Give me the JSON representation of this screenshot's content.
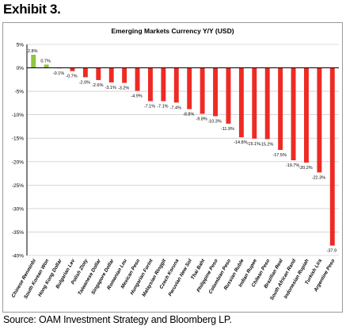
{
  "header": {
    "exhibit_label": "Exhibit 3."
  },
  "footer": {
    "source": "Source: OAM Investment Strategy and Bloomberg LP."
  },
  "colors": {
    "positive": "#8dc63f",
    "negative": "#ee2a24",
    "axis": "#000000",
    "grid": "#bdbdbd"
  },
  "chart_data": {
    "type": "bar",
    "title": "Emerging Markets Currency Y/Y (USD)",
    "xlabel": "",
    "ylabel": "",
    "ylim": [
      -40,
      5
    ],
    "yticks": [
      5,
      0,
      -5,
      -10,
      -15,
      -20,
      -25,
      -30,
      -35,
      -40
    ],
    "ytick_labels": [
      "5%",
      "0%",
      "-5%",
      "-10%",
      "-15%",
      "-20%",
      "-25%",
      "-30%",
      "-35%",
      "-40%"
    ],
    "grid": true,
    "legend": "none",
    "categories": [
      "Chinese Renminbi",
      "South Korean Won",
      "Hong Kong Dollar",
      "Bulgarian Lev",
      "Polish Zloty",
      "Taiwanese Dollar",
      "Singapore Dollar",
      "Romanian Leu",
      "Mexican Peso",
      "Hungarian Forint",
      "Malaysian Ringgit",
      "Czech Koruna",
      "Peruvian New Sol",
      "Thai Baht",
      "Philippine Peso",
      "Colombian Peso",
      "Russian Ruble",
      "Indian Rupee",
      "Chilean Peso",
      "Brazilian Real",
      "South African Rand",
      "Indonesian Rupiah",
      "Turkish Lira",
      "Argentine Peso"
    ],
    "values": [
      2.8,
      0.7,
      -0.1,
      -0.7,
      -2.0,
      -2.6,
      -3.1,
      -3.2,
      -4.9,
      -7.1,
      -7.1,
      -7.4,
      -8.8,
      -9.8,
      -10.3,
      -11.9,
      -14.8,
      -15.1,
      -15.2,
      -17.5,
      -19.7,
      -20.2,
      -22.3,
      -37.9
    ],
    "labels": [
      "2.8%",
      "0.7%",
      "-0.1%",
      "-0.7%",
      "-2.0%",
      "-2.6%",
      "-3.1%",
      "-3.2%",
      "-4.9%",
      "-7.1%",
      "-7.1%",
      "-7.4%",
      "-8.8%",
      "-9.8%",
      "-10.3%",
      "-11.9%",
      "-14.8%",
      "-15.1%",
      "-15.2%",
      "-17.5%",
      "-19.7%",
      "-20.2%",
      "-22.3%",
      "-37.9"
    ]
  }
}
